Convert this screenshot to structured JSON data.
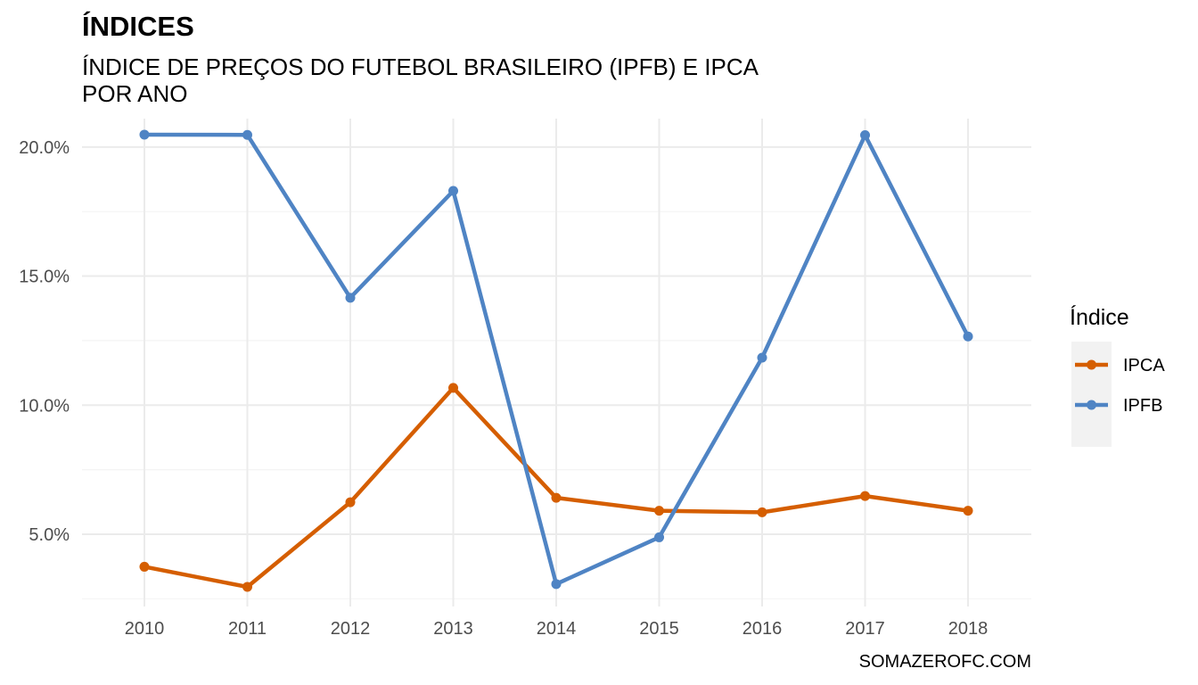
{
  "chart_data": {
    "type": "line",
    "title": "ÍNDICES",
    "subtitle_lines": [
      "ÍNDICE DE PREÇOS DO FUTEBOL BRASILEIRO (IPFB) E IPCA",
      "POR ANO"
    ],
    "caption": "SOMAZEROFC.COM",
    "x": [
      "2010",
      "2011",
      "2012",
      "2013",
      "2014",
      "2015",
      "2016",
      "2017",
      "2018"
    ],
    "y_ticks": [
      {
        "value": 5,
        "label": "5.0%"
      },
      {
        "value": 10,
        "label": "10.0%"
      },
      {
        "value": 15,
        "label": "15.0%"
      },
      {
        "value": 20,
        "label": "20.0%"
      }
    ],
    "ylim": [
      2.2,
      21.1
    ],
    "grid": true,
    "legend": {
      "title": "Índice",
      "placement": "right"
    },
    "series": [
      {
        "name": "IPCA",
        "color": "#D55E00",
        "values": [
          3.74,
          2.96,
          6.24,
          10.67,
          6.41,
          5.91,
          5.85,
          6.48,
          5.91
        ]
      },
      {
        "name": "IPFB",
        "color": "#4F84C4",
        "values": [
          20.48,
          20.47,
          14.16,
          18.3,
          3.07,
          4.88,
          11.84,
          20.46,
          12.66
        ]
      }
    ]
  }
}
